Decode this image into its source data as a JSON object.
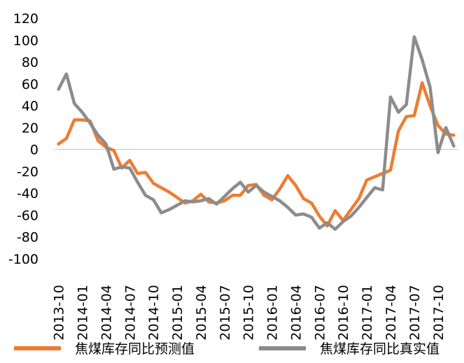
{
  "chart_data": {
    "type": "line",
    "title": "",
    "xlabel": "",
    "ylabel": "",
    "ylim": [
      -100,
      120
    ],
    "yticks": [
      "120",
      "100",
      "80",
      "60",
      "40",
      "20",
      "0",
      "-20",
      "-40",
      "-60",
      "-80",
      "-100"
    ],
    "x": [
      "2013-10",
      "2013-11",
      "2013-12",
      "2014-01",
      "2014-02",
      "2014-03",
      "2014-04",
      "2014-05",
      "2014-06",
      "2014-07",
      "2014-08",
      "2014-09",
      "2014-10",
      "2014-11",
      "2014-12",
      "2015-01",
      "2015-02",
      "2015-03",
      "2015-04",
      "2015-05",
      "2015-06",
      "2015-07",
      "2015-08",
      "2015-09",
      "2015-10",
      "2015-11",
      "2015-12",
      "2016-01",
      "2016-02",
      "2016-03",
      "2016-04",
      "2016-05",
      "2016-06",
      "2016-07",
      "2016-08",
      "2016-09",
      "2016-10",
      "2016-11",
      "2016-12",
      "2017-01",
      "2017-02",
      "2017-03",
      "2017-04",
      "2017-05",
      "2017-06",
      "2017-07",
      "2017-08",
      "2017-09",
      "2017-10",
      "2017-11",
      "2017-12"
    ],
    "xtick_labels": [
      "2013-10",
      "2014-01",
      "2014-04",
      "2014-07",
      "2014-10",
      "2015-01",
      "2015-04",
      "2015-07",
      "2015-10",
      "2016-01",
      "2016-04",
      "2016-07",
      "2016-10",
      "2017-01",
      "2017-04",
      "2017-07",
      "2017-10"
    ],
    "grid": false,
    "legend_position": "bottom",
    "series": [
      {
        "name": "焦煤库存同比预测值",
        "color": "#ed7d31",
        "values": [
          5,
          10,
          27,
          27,
          26,
          8,
          2,
          -1,
          -17,
          -10,
          -22,
          -21,
          -31,
          -35,
          -39,
          -44,
          -49,
          -47,
          -41,
          -48,
          -49,
          -47,
          -42,
          -42,
          -33,
          -32,
          -42,
          -46,
          -36,
          -24,
          -33,
          -45,
          -49,
          -61,
          -70,
          -56,
          -65,
          -55,
          -45,
          -28,
          -25,
          -22,
          -19,
          17,
          30,
          31,
          61,
          40,
          22,
          14,
          13
        ]
      },
      {
        "name": "焦煤库存同比真实值",
        "color": "#8c8c8c",
        "values": [
          55,
          69,
          42,
          34,
          24,
          13,
          5,
          -18,
          -16,
          -17,
          -30,
          -42,
          -46,
          -58,
          -55,
          -51,
          -47,
          -48,
          -47,
          -45,
          -50,
          -43,
          -36,
          -30,
          -39,
          -33,
          -39,
          -43,
          -47,
          -53,
          -60,
          -59,
          -62,
          -72,
          -67,
          -73,
          -66,
          -61,
          -53,
          -44,
          -35,
          -37,
          48,
          34,
          41,
          103,
          82,
          57,
          -3,
          20,
          3
        ]
      }
    ]
  }
}
